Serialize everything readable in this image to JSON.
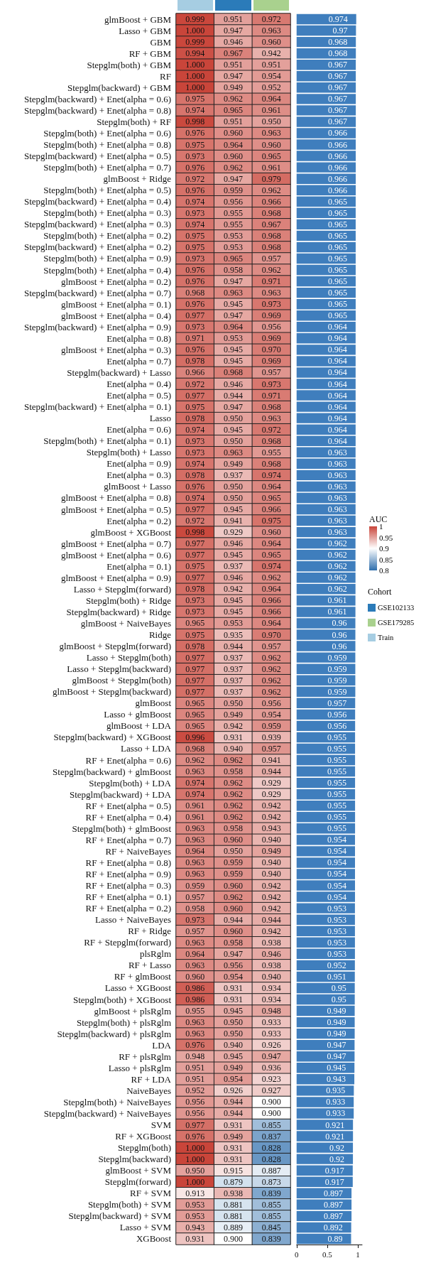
{
  "chart_data": [
    {
      "type": "heatmap",
      "categories": [
        null,
        null,
        null
      ],
      "colors": [
        "#a6cde2",
        "#2b7bb9",
        "#a9d18e"
      ],
      "clabel": "AUC",
      "clim": [
        0.8,
        1
      ],
      "cell_labels": [
        [
          "0.999",
          "0.951",
          "0.972"
        ],
        [
          "1.000",
          "0.947",
          "0.963"
        ],
        [
          "0.999",
          "0.946",
          "0.960"
        ],
        [
          "0.994",
          "0.967",
          "0.942"
        ],
        [
          "1.000",
          "0.951",
          "0.951"
        ],
        [
          "1.000",
          "0.947",
          "0.954"
        ],
        [
          "1.000",
          "0.949",
          "0.952"
        ],
        [
          "0.975",
          "0.962",
          "0.964"
        ],
        [
          "0.974",
          "0.965",
          "0.961"
        ],
        [
          "0.998",
          "0.951",
          "0.950"
        ],
        [
          "0.976",
          "0.960",
          "0.963"
        ],
        [
          "0.975",
          "0.964",
          "0.960"
        ],
        [
          "0.973",
          "0.960",
          "0.965"
        ],
        [
          "0.976",
          "0.962",
          "0.961"
        ],
        [
          "0.972",
          "0.947",
          "0.979"
        ],
        [
          "0.976",
          "0.959",
          "0.962"
        ],
        [
          "0.974",
          "0.956",
          "0.966"
        ],
        [
          "0.973",
          "0.955",
          "0.968"
        ],
        [
          "0.974",
          "0.955",
          "0.967"
        ],
        [
          "0.975",
          "0.953",
          "0.968"
        ],
        [
          "0.975",
          "0.953",
          "0.968"
        ],
        [
          "0.973",
          "0.965",
          "0.957"
        ],
        [
          "0.976",
          "0.958",
          "0.962"
        ],
        [
          "0.976",
          "0.947",
          "0.971"
        ],
        [
          "0.968",
          "0.963",
          "0.963"
        ],
        [
          "0.976",
          "0.945",
          "0.973"
        ],
        [
          "0.977",
          "0.947",
          "0.969"
        ],
        [
          "0.973",
          "0.964",
          "0.956"
        ],
        [
          "0.971",
          "0.953",
          "0.969"
        ],
        [
          "0.976",
          "0.945",
          "0.970"
        ],
        [
          "0.978",
          "0.945",
          "0.969"
        ],
        [
          "0.966",
          "0.968",
          "0.957"
        ],
        [
          "0.972",
          "0.946",
          "0.973"
        ],
        [
          "0.977",
          "0.944",
          "0.971"
        ],
        [
          "0.975",
          "0.947",
          "0.968"
        ],
        [
          "0.978",
          "0.950",
          "0.963"
        ],
        [
          "0.974",
          "0.945",
          "0.972"
        ],
        [
          "0.973",
          "0.950",
          "0.968"
        ],
        [
          "0.973",
          "0.963",
          "0.955"
        ],
        [
          "0.974",
          "0.949",
          "0.968"
        ],
        [
          "0.978",
          "0.937",
          "0.974"
        ],
        [
          "0.976",
          "0.950",
          "0.964"
        ],
        [
          "0.974",
          "0.950",
          "0.965"
        ],
        [
          "0.977",
          "0.945",
          "0.966"
        ],
        [
          "0.972",
          "0.941",
          "0.975"
        ],
        [
          "0.998",
          "0.929",
          "0.960"
        ],
        [
          "0.977",
          "0.946",
          "0.964"
        ],
        [
          "0.977",
          "0.945",
          "0.965"
        ],
        [
          "0.975",
          "0.937",
          "0.974"
        ],
        [
          "0.977",
          "0.946",
          "0.962"
        ],
        [
          "0.978",
          "0.942",
          "0.964"
        ],
        [
          "0.973",
          "0.945",
          "0.966"
        ],
        [
          "0.973",
          "0.945",
          "0.966"
        ],
        [
          "0.965",
          "0.953",
          "0.964"
        ],
        [
          "0.975",
          "0.935",
          "0.970"
        ],
        [
          "0.978",
          "0.944",
          "0.957"
        ],
        [
          "0.977",
          "0.937",
          "0.962"
        ],
        [
          "0.977",
          "0.937",
          "0.962"
        ],
        [
          "0.977",
          "0.937",
          "0.962"
        ],
        [
          "0.977",
          "0.937",
          "0.962"
        ],
        [
          "0.965",
          "0.950",
          "0.956"
        ],
        [
          "0.965",
          "0.949",
          "0.954"
        ],
        [
          "0.965",
          "0.942",
          "0.959"
        ],
        [
          "0.996",
          "0.931",
          "0.939"
        ],
        [
          "0.968",
          "0.940",
          "0.957"
        ],
        [
          "0.962",
          "0.962",
          "0.941"
        ],
        [
          "0.963",
          "0.958",
          "0.944"
        ],
        [
          "0.974",
          "0.962",
          "0.929"
        ],
        [
          "0.974",
          "0.962",
          "0.929"
        ],
        [
          "0.961",
          "0.962",
          "0.942"
        ],
        [
          "0.961",
          "0.962",
          "0.942"
        ],
        [
          "0.963",
          "0.958",
          "0.943"
        ],
        [
          "0.963",
          "0.960",
          "0.940"
        ],
        [
          "0.964",
          "0.950",
          "0.949"
        ],
        [
          "0.963",
          "0.959",
          "0.940"
        ],
        [
          "0.963",
          "0.959",
          "0.940"
        ],
        [
          "0.959",
          "0.960",
          "0.942"
        ],
        [
          "0.957",
          "0.962",
          "0.942"
        ],
        [
          "0.958",
          "0.960",
          "0.942"
        ],
        [
          "0.973",
          "0.944",
          "0.944"
        ],
        [
          "0.957",
          "0.960",
          "0.942"
        ],
        [
          "0.963",
          "0.958",
          "0.938"
        ],
        [
          "0.964",
          "0.947",
          "0.946"
        ],
        [
          "0.963",
          "0.956",
          "0.938"
        ],
        [
          "0.960",
          "0.954",
          "0.940"
        ],
        [
          "0.986",
          "0.931",
          "0.934"
        ],
        [
          "0.986",
          "0.931",
          "0.934"
        ],
        [
          "0.955",
          "0.945",
          "0.948"
        ],
        [
          "0.963",
          "0.950",
          "0.933"
        ],
        [
          "0.963",
          "0.950",
          "0.933"
        ],
        [
          "0.976",
          "0.940",
          "0.926"
        ],
        [
          "0.948",
          "0.945",
          "0.947"
        ],
        [
          "0.951",
          "0.949",
          "0.936"
        ],
        [
          "0.951",
          "0.954",
          "0.923"
        ],
        [
          "0.952",
          "0.926",
          "0.927"
        ],
        [
          "0.956",
          "0.944",
          "0.900"
        ],
        [
          "0.956",
          "0.944",
          "0.900"
        ],
        [
          "0.977",
          "0.931",
          "0.855"
        ],
        [
          "0.976",
          "0.949",
          "0.837"
        ],
        [
          "1.000",
          "0.931",
          "0.828"
        ],
        [
          "1.000",
          "0.931",
          "0.828"
        ],
        [
          "0.950",
          "0.915",
          "0.887"
        ],
        [
          "1.000",
          "0.879",
          "0.873"
        ],
        [
          "0.913",
          "0.938",
          "0.839"
        ],
        [
          "0.953",
          "0.881",
          "0.855"
        ],
        [
          "0.953",
          "0.881",
          "0.855"
        ],
        [
          "0.943",
          "0.889",
          "0.845"
        ],
        [
          "0.931",
          "0.900",
          "0.839"
        ]
      ],
      "cticks": [
        0.8,
        0.85,
        0.9,
        0.95,
        1
      ],
      "data_labels": true,
      "y_categories": [
        "glmBoost + GBM",
        "Lasso + GBM",
        "GBM",
        "RF + GBM",
        "Stepglm(both) + GBM",
        "RF",
        "Stepglm(backward) + GBM",
        "Stepglm(backward) + Enet(alpha = 0.6)",
        "Stepglm(backward) + Enet(alpha = 0.8)",
        "Stepglm(both) + RF",
        "Stepglm(both) + Enet(alpha = 0.6)",
        "Stepglm(both) + Enet(alpha = 0.8)",
        "Stepglm(backward) + Enet(alpha = 0.5)",
        "Stepglm(both) + Enet(alpha = 0.7)",
        "glmBoost + Ridge",
        "Stepglm(both) + Enet(alpha = 0.5)",
        "Stepglm(backward) + Enet(alpha = 0.4)",
        "Stepglm(both) + Enet(alpha = 0.3)",
        "Stepglm(backward) + Enet(alpha = 0.3)",
        "Stepglm(both) + Enet(alpha = 0.2)",
        "Stepglm(backward) + Enet(alpha = 0.2)",
        "Stepglm(both) + Enet(alpha = 0.9)",
        "Stepglm(both) + Enet(alpha = 0.4)",
        "glmBoost + Enet(alpha = 0.2)",
        "Stepglm(backward) + Enet(alpha = 0.7)",
        "glmBoost + Enet(alpha = 0.1)",
        "glmBoost + Enet(alpha = 0.4)",
        "Stepglm(backward) + Enet(alpha = 0.9)",
        "Enet(alpha = 0.8)",
        "glmBoost + Enet(alpha = 0.3)",
        "Enet(alpha = 0.7)",
        "Stepglm(backward) + Lasso",
        "Enet(alpha = 0.4)",
        "Enet(alpha = 0.5)",
        "Stepglm(backward) + Enet(alpha = 0.1)",
        "Lasso",
        "Enet(alpha = 0.6)",
        "Stepglm(both) + Enet(alpha = 0.1)",
        "Stepglm(both) + Lasso",
        "Enet(alpha = 0.9)",
        "Enet(alpha = 0.3)",
        "glmBoost + Lasso",
        "glmBoost + Enet(alpha = 0.8)",
        "glmBoost + Enet(alpha = 0.5)",
        "Enet(alpha = 0.2)",
        "glmBoost + XGBoost",
        "glmBoost + Enet(alpha = 0.7)",
        "glmBoost + Enet(alpha = 0.6)",
        "Enet(alpha = 0.1)",
        "glmBoost + Enet(alpha = 0.9)",
        "Lasso + Stepglm(forward)",
        "Stepglm(both) + Ridge",
        "Stepglm(backward) + Ridge",
        "glmBoost + NaiveBayes",
        "Ridge",
        "glmBoost + Stepglm(forward)",
        "Lasso + Stepglm(both)",
        "Lasso + Stepglm(backward)",
        "glmBoost + Stepglm(both)",
        "glmBoost + Stepglm(backward)",
        "glmBoost",
        "Lasso + glmBoost",
        "glmBoost + LDA",
        "Stepglm(backward) + XGBoost",
        "Lasso + LDA",
        "RF + Enet(alpha = 0.6)",
        "Stepglm(backward) + glmBoost",
        "Stepglm(both) + LDA",
        "Stepglm(backward) + LDA",
        "RF + Enet(alpha = 0.5)",
        "RF + Enet(alpha = 0.4)",
        "Stepglm(both) + glmBoost",
        "RF + Enet(alpha = 0.7)",
        "RF + NaiveBayes",
        "RF + Enet(alpha = 0.8)",
        "RF + Enet(alpha = 0.9)",
        "RF + Enet(alpha = 0.3)",
        "RF + Enet(alpha = 0.1)",
        "RF + Enet(alpha = 0.2)",
        "Lasso + NaiveBayes",
        "RF + Ridge",
        "RF + Stepglm(forward)",
        "plsRglm",
        "RF + Lasso",
        "RF + glmBoost",
        "Lasso + XGBoost",
        "Stepglm(both) + XGBoost",
        "glmBoost + plsRglm",
        "Stepglm(both) + plsRglm",
        "Stepglm(backward) + plsRglm",
        "LDA",
        "RF + plsRglm",
        "Lasso + plsRglm",
        "RF + LDA",
        "NaiveBayes",
        "Stepglm(both) + NaiveBayes",
        "Stepglm(backward) + NaiveBayes",
        "SVM",
        "RF + XGBoost",
        "Stepglm(both)",
        "Stepglm(backward)",
        "glmBoost + SVM",
        "Stepglm(forward)",
        "RF + SVM",
        "Stepglm(both) + SVM",
        "Stepglm(backward) + SVM",
        "Lasso + SVM",
        "XGBoost"
      ],
      "cells": [
        [
          0.999,
          0.951,
          0.972
        ],
        [
          1.0,
          0.947,
          0.963
        ],
        [
          0.999,
          0.946,
          0.96
        ],
        [
          0.994,
          0.967,
          0.942
        ],
        [
          1.0,
          0.951,
          0.951
        ],
        [
          1.0,
          0.947,
          0.954
        ],
        [
          1.0,
          0.949,
          0.952
        ],
        [
          0.975,
          0.962,
          0.964
        ],
        [
          0.974,
          0.965,
          0.961
        ],
        [
          0.998,
          0.951,
          0.95
        ],
        [
          0.976,
          0.96,
          0.963
        ],
        [
          0.975,
          0.964,
          0.96
        ],
        [
          0.973,
          0.96,
          0.965
        ],
        [
          0.976,
          0.962,
          0.961
        ],
        [
          0.972,
          0.947,
          0.979
        ],
        [
          0.976,
          0.959,
          0.962
        ],
        [
          0.974,
          0.956,
          0.966
        ],
        [
          0.973,
          0.955,
          0.968
        ],
        [
          0.974,
          0.955,
          0.967
        ],
        [
          0.975,
          0.953,
          0.968
        ],
        [
          0.975,
          0.953,
          0.968
        ],
        [
          0.973,
          0.965,
          0.957
        ],
        [
          0.976,
          0.958,
          0.962
        ],
        [
          0.976,
          0.947,
          0.971
        ],
        [
          0.968,
          0.963,
          0.963
        ],
        [
          0.976,
          0.945,
          0.973
        ],
        [
          0.977,
          0.947,
          0.969
        ],
        [
          0.973,
          0.964,
          0.956
        ],
        [
          0.971,
          0.953,
          0.969
        ],
        [
          0.976,
          0.945,
          0.97
        ],
        [
          0.978,
          0.945,
          0.969
        ],
        [
          0.966,
          0.968,
          0.957
        ],
        [
          0.972,
          0.946,
          0.973
        ],
        [
          0.977,
          0.944,
          0.971
        ],
        [
          0.975,
          0.947,
          0.968
        ],
        [
          0.978,
          0.95,
          0.963
        ],
        [
          0.974,
          0.945,
          0.972
        ],
        [
          0.973,
          0.95,
          0.968
        ],
        [
          0.973,
          0.963,
          0.955
        ],
        [
          0.974,
          0.949,
          0.968
        ],
        [
          0.978,
          0.937,
          0.974
        ],
        [
          0.976,
          0.95,
          0.964
        ],
        [
          0.974,
          0.95,
          0.965
        ],
        [
          0.977,
          0.945,
          0.966
        ],
        [
          0.972,
          0.941,
          0.975
        ],
        [
          0.998,
          0.929,
          0.96
        ],
        [
          0.977,
          0.946,
          0.964
        ],
        [
          0.977,
          0.945,
          0.965
        ],
        [
          0.975,
          0.937,
          0.974
        ],
        [
          0.977,
          0.946,
          0.962
        ],
        [
          0.978,
          0.942,
          0.964
        ],
        [
          0.973,
          0.945,
          0.966
        ],
        [
          0.973,
          0.945,
          0.966
        ],
        [
          0.965,
          0.953,
          0.964
        ],
        [
          0.975,
          0.935,
          0.97
        ],
        [
          0.978,
          0.944,
          0.957
        ],
        [
          0.977,
          0.937,
          0.962
        ],
        [
          0.977,
          0.937,
          0.962
        ],
        [
          0.977,
          0.937,
          0.962
        ],
        [
          0.977,
          0.937,
          0.962
        ],
        [
          0.965,
          0.95,
          0.956
        ],
        [
          0.965,
          0.949,
          0.954
        ],
        [
          0.965,
          0.942,
          0.959
        ],
        [
          0.996,
          0.931,
          0.939
        ],
        [
          0.968,
          0.94,
          0.957
        ],
        [
          0.962,
          0.962,
          0.941
        ],
        [
          0.963,
          0.958,
          0.944
        ],
        [
          0.974,
          0.962,
          0.929
        ],
        [
          0.974,
          0.962,
          0.929
        ],
        [
          0.961,
          0.962,
          0.942
        ],
        [
          0.961,
          0.962,
          0.942
        ],
        [
          0.963,
          0.958,
          0.943
        ],
        [
          0.963,
          0.96,
          0.94
        ],
        [
          0.964,
          0.95,
          0.949
        ],
        [
          0.963,
          0.959,
          0.94
        ],
        [
          0.963,
          0.959,
          0.94
        ],
        [
          0.959,
          0.96,
          0.942
        ],
        [
          0.957,
          0.962,
          0.942
        ],
        [
          0.958,
          0.96,
          0.942
        ],
        [
          0.973,
          0.944,
          0.944
        ],
        [
          0.957,
          0.96,
          0.942
        ],
        [
          0.963,
          0.958,
          0.938
        ],
        [
          0.964,
          0.947,
          0.946
        ],
        [
          0.963,
          0.956,
          0.938
        ],
        [
          0.96,
          0.954,
          0.94
        ],
        [
          0.986,
          0.931,
          0.934
        ],
        [
          0.986,
          0.931,
          0.934
        ],
        [
          0.955,
          0.945,
          0.948
        ],
        [
          0.963,
          0.95,
          0.933
        ],
        [
          0.963,
          0.95,
          0.933
        ],
        [
          0.976,
          0.94,
          0.926
        ],
        [
          0.948,
          0.945,
          0.947
        ],
        [
          0.951,
          0.949,
          0.936
        ],
        [
          0.951,
          0.954,
          0.923
        ],
        [
          0.952,
          0.926,
          0.927
        ],
        [
          0.956,
          0.944,
          0.9
        ],
        [
          0.956,
          0.944,
          0.9
        ],
        [
          0.977,
          0.931,
          0.855
        ],
        [
          0.976,
          0.949,
          0.837
        ],
        [
          1.0,
          0.931,
          0.828
        ],
        [
          1.0,
          0.931,
          0.828
        ],
        [
          0.95,
          0.915,
          0.887
        ],
        [
          1.0,
          0.879,
          0.873
        ],
        [
          0.913,
          0.938,
          0.839
        ],
        [
          0.953,
          0.881,
          0.855
        ],
        [
          0.953,
          0.881,
          0.855
        ],
        [
          0.943,
          0.889,
          0.845
        ],
        [
          0.931,
          0.9,
          0.839
        ]
      ]
    },
    {
      "type": "bar",
      "orientation": "horizontal",
      "color": "#3f7ebd",
      "data_labels": true,
      "tick_labels": "x",
      "xlim": [
        0,
        1.07
      ],
      "xticks": [
        0,
        0.5,
        1
      ],
      "categories": [
        null,
        null,
        null,
        null,
        null,
        null,
        null,
        null,
        null,
        null,
        null,
        null,
        null,
        null,
        null,
        null,
        null,
        null,
        null,
        null,
        null,
        null,
        null,
        null,
        null,
        null,
        null,
        null,
        null,
        null,
        null,
        null,
        null,
        null,
        null,
        null,
        null,
        null,
        null,
        null,
        null,
        null,
        null,
        null,
        null,
        null,
        null,
        null,
        null,
        null,
        null,
        null,
        null,
        null,
        null,
        null,
        null,
        null,
        null,
        null,
        null,
        null,
        null,
        null,
        null,
        null,
        null,
        null,
        null,
        null,
        null,
        null,
        null,
        null,
        null,
        null,
        null,
        null,
        null,
        null,
        null,
        null,
        null,
        null,
        null,
        null,
        null,
        null,
        null,
        null,
        null,
        null,
        null,
        null,
        null,
        null,
        null,
        null,
        null,
        null,
        null,
        null,
        null,
        null,
        null,
        null,
        null,
        null
      ],
      "values": [
        0.974,
        0.97,
        0.968,
        0.968,
        0.967,
        0.967,
        0.967,
        0.967,
        0.967,
        0.967,
        0.966,
        0.966,
        0.966,
        0.966,
        0.966,
        0.966,
        0.965,
        0.965,
        0.965,
        0.965,
        0.965,
        0.965,
        0.965,
        0.965,
        0.965,
        0.965,
        0.965,
        0.964,
        0.964,
        0.964,
        0.964,
        0.964,
        0.964,
        0.964,
        0.964,
        0.964,
        0.964,
        0.964,
        0.963,
        0.963,
        0.963,
        0.963,
        0.963,
        0.963,
        0.963,
        0.963,
        0.962,
        0.962,
        0.962,
        0.962,
        0.962,
        0.961,
        0.961,
        0.96,
        0.96,
        0.96,
        0.959,
        0.959,
        0.959,
        0.959,
        0.957,
        0.956,
        0.956,
        0.955,
        0.955,
        0.955,
        0.955,
        0.955,
        0.955,
        0.955,
        0.955,
        0.955,
        0.954,
        0.954,
        0.954,
        0.954,
        0.954,
        0.954,
        0.953,
        0.953,
        0.953,
        0.953,
        0.953,
        0.952,
        0.951,
        0.95,
        0.95,
        0.949,
        0.949,
        0.949,
        0.947,
        0.947,
        0.945,
        0.943,
        0.935,
        0.933,
        0.933,
        0.921,
        0.921,
        0.92,
        0.92,
        0.917,
        0.917,
        0.897,
        0.897,
        0.897,
        0.892,
        0.89
      ]
    },
    {
      "type": "other",
      "title": "Cohort",
      "categories": [
        "GSE102133",
        "GSE179285",
        "Train"
      ],
      "colors": [
        "#2b7bb9",
        "#a9d18e",
        "#a6cde2"
      ]
    }
  ]
}
